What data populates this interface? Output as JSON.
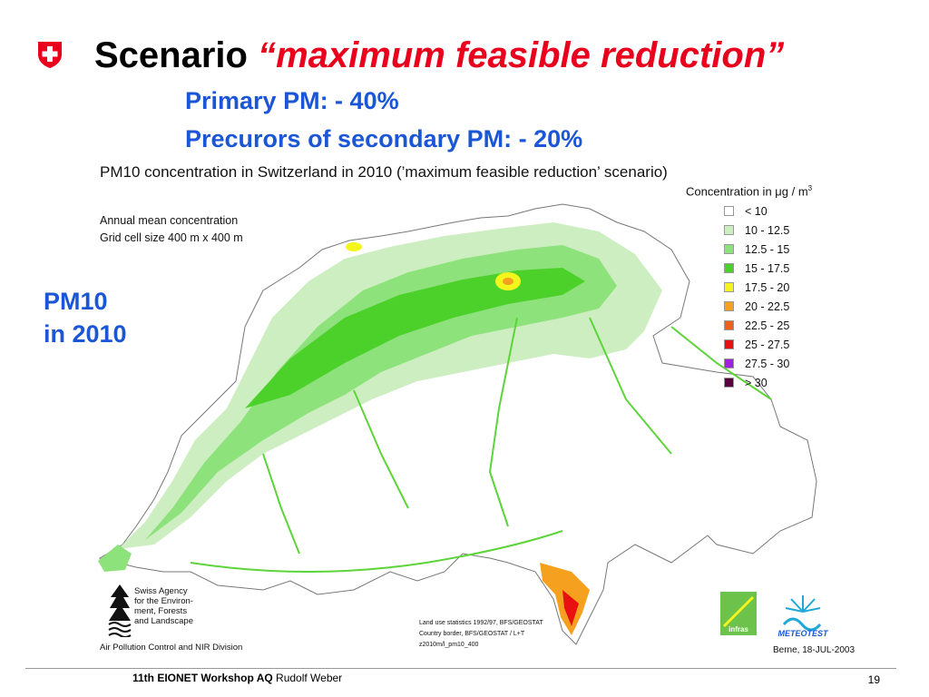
{
  "slide": {
    "title_main": "Scenario",
    "title_accent": "“maximum feasible reduction”",
    "subtitle_line1": "Primary PM: - 40%",
    "subtitle_line2": "Precurors of secondary PM: - 20%",
    "side_label_line1": "PM10",
    "side_label_line2": "in 2010"
  },
  "map": {
    "title": "PM10 concentration in Switzerland in 2010 (’maximum feasible reduction’ scenario)",
    "note_line1": "Annual mean concentration",
    "note_line2": "Grid cell size 400 m x 400 m",
    "legend_title": "Concentration in μg / m",
    "legend_title_sup": "3",
    "legend_items": [
      {
        "label": "< 10",
        "color": "#ffffff"
      },
      {
        "label": "10 - 12.5",
        "color": "#cdeec0"
      },
      {
        "label": "12.5 - 15",
        "color": "#8ee27c"
      },
      {
        "label": "15 - 17.5",
        "color": "#4cd12a"
      },
      {
        "label": "17.5 - 20",
        "color": "#f5f51e"
      },
      {
        "label": "20 - 22.5",
        "color": "#f5a01e"
      },
      {
        "label": "22.5 - 25",
        "color": "#f0601a"
      },
      {
        "label": "25 - 27.5",
        "color": "#e81010"
      },
      {
        "label": "27.5 - 30",
        "color": "#a020e0"
      },
      {
        "label": "> 30",
        "color": "#5a0040"
      }
    ],
    "source_line1": "Land use statistics 1992/97, BFS/GEOSTAT",
    "source_line2": "Country border, BFS/GEOSTAT / L+T",
    "source_line3": "z2010m/l_pm10_400",
    "date_credit": "Berne, 18-JUL-2003"
  },
  "agency": {
    "name_line1": "Swiss Agency",
    "name_line2": "for the Environ-",
    "name_line3": "ment, Forests",
    "name_line4": "and Landscape",
    "division": "Air Pollution Control and NIR Division"
  },
  "logos": {
    "infras": "infras",
    "meteotest": "METEOTEST"
  },
  "footer": {
    "workshop": "11th EIONET Workshop AQ",
    "author": "Rudolf Weber",
    "page": "19"
  }
}
